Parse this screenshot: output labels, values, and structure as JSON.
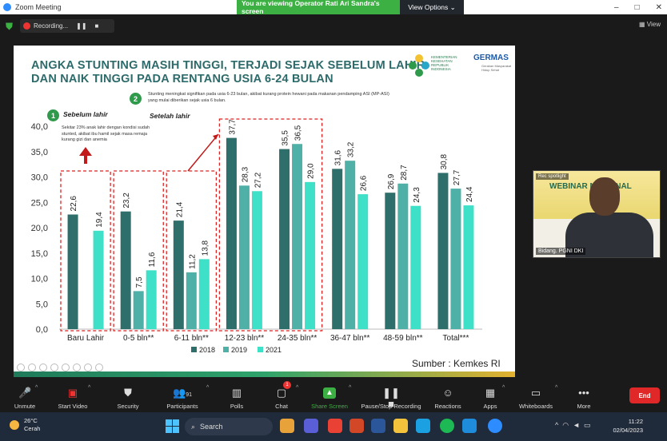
{
  "window": {
    "title": "Zoom Meeting",
    "viewing_banner": "You are viewing Operator Rati Ari Sandra's screen",
    "view_options": "View Options",
    "controls": [
      "–",
      "□",
      "✕"
    ]
  },
  "topbar": {
    "recording_label": "Recording...",
    "pause_icon": "❚❚",
    "stop_icon": "■",
    "view_label": "View"
  },
  "slide": {
    "title_line1": "ANGKA STUNTING MASIH TINGGI, TERJADI SEJAK SEBELUM LAHIR",
    "title_line2": "DAN NAIK TINGGI PADA RENTANG USIA 6-24 BULAN",
    "logo_kemkes_text": "KEMENTERIAN KESEHATAN REPUBLIK INDONESIA",
    "logo_germas_text": "GERMAS",
    "logo_germas_sub": "Gerakan Masyarakat Hidup Sehat",
    "badge1": "1",
    "badge2": "2",
    "label_before": "Sebelum lahir",
    "label_after": "Setelah lahir",
    "note1": "Sekitar 23% anak lahir dengan kondisi sudah stunted, akibat ibu hamil sejak masa remaja kurang gizi dan anemia",
    "note2": "Stunting meningkat signifikan pada usia 6-23 bulan, akibat kurang protein hewani pada makanan pendamping ASI (MP-ASI) yang mulai diberikan sejak usia 6 bulan.",
    "source": "Sumber : Kemkes RI"
  },
  "chart_data": {
    "type": "bar",
    "categories": [
      "Baru Lahir",
      "0-5 bln**",
      "6-11 bln**",
      "12-23 bln**",
      "24-35 bln**",
      "36-47 bln**",
      "48-59 bln**",
      "Total***"
    ],
    "series": [
      {
        "name": "2018",
        "color": "#2f6f6b",
        "values": [
          22.6,
          23.2,
          21.4,
          37.7,
          35.5,
          31.6,
          26.9,
          30.8
        ]
      },
      {
        "name": "2019",
        "color": "#4fb0a7",
        "values": [
          null,
          7.5,
          11.2,
          28.3,
          36.5,
          33.2,
          28.7,
          27.7
        ]
      },
      {
        "name": "2021",
        "color": "#3fe0c8",
        "values": [
          19.4,
          11.6,
          13.8,
          27.2,
          29.0,
          26.6,
          24.3,
          24.4
        ]
      }
    ],
    "yticks": [
      "0,0",
      "5,0",
      "10,0",
      "15,0",
      "20,0",
      "25,0",
      "30,0",
      "35,0",
      "40,0"
    ],
    "ylim": [
      0,
      40
    ],
    "value_labels": [
      [
        "22,6",
        "",
        "19,4"
      ],
      [
        "23,2",
        "7,5",
        "11,6"
      ],
      [
        "21,4",
        "11,2",
        "13,8"
      ],
      [
        "37,7",
        "28,3",
        "27,2"
      ],
      [
        "35,5",
        "36,5",
        "29,0"
      ],
      [
        "31,6",
        "33,2",
        "26,6"
      ],
      [
        "26,9",
        "28,7",
        "24,3"
      ],
      [
        "30,8",
        "27,7",
        "24,4"
      ]
    ],
    "legend": [
      "2018",
      "2019",
      "2021"
    ],
    "legend_position": "bottom",
    "grid": false
  },
  "video": {
    "name": "Bidang. PGNI DKI",
    "banner_text": "WEBINAR NASIONAL",
    "top_label": "Rec spotlight"
  },
  "toolbar": {
    "items": [
      {
        "label": "Unmute",
        "icon": "🎤"
      },
      {
        "label": "Start Video",
        "icon": "📹"
      },
      {
        "label": "Security",
        "icon": "🛡"
      },
      {
        "label": "Participants",
        "icon": "👥",
        "count": "91"
      },
      {
        "label": "Polls",
        "icon": "📊"
      },
      {
        "label": "Chat",
        "icon": "💬",
        "badge": "1"
      },
      {
        "label": "Share Screen",
        "icon": "⬆"
      },
      {
        "label": "Pause/Stop Recording",
        "icon": "⏸"
      },
      {
        "label": "Reactions",
        "icon": "☺"
      },
      {
        "label": "Apps",
        "icon": "▦"
      },
      {
        "label": "Whiteboards",
        "icon": "▭"
      },
      {
        "label": "More",
        "icon": "•••"
      }
    ],
    "end_label": "End"
  },
  "taskbar": {
    "weather_temp": "26°C",
    "weather_desc": "Cerah",
    "search_label": "Search",
    "time": "11:22",
    "date": "02/04/2023"
  }
}
